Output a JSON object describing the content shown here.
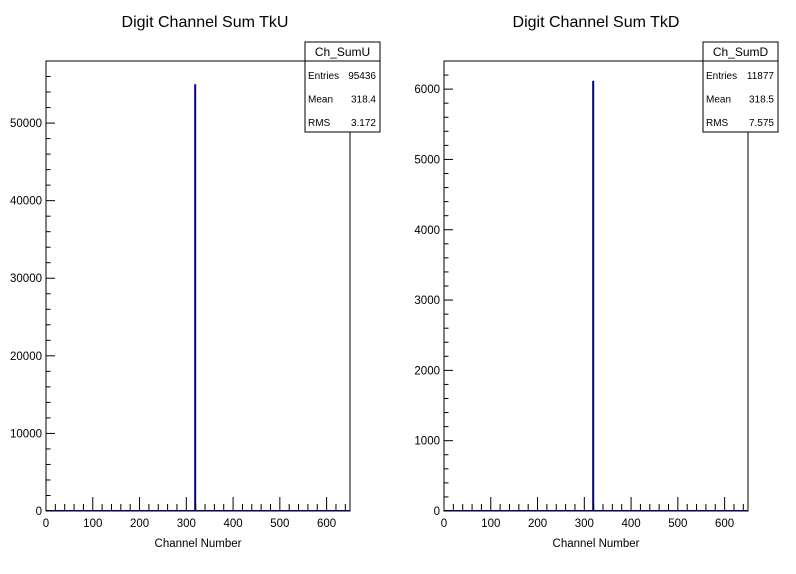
{
  "chart_data": [
    {
      "type": "bar",
      "title": "Digit Channel Sum TkU",
      "xlabel": "Channel Number",
      "ylabel": "",
      "xlim": [
        0,
        650
      ],
      "ylim": [
        0,
        58000
      ],
      "x_ticks": [
        "0",
        "100",
        "200",
        "300",
        "400",
        "500",
        "600"
      ],
      "y_ticks": [
        "0",
        "10000",
        "20000",
        "30000",
        "40000",
        "50000"
      ],
      "grid": false,
      "line_color": "#000080",
      "bins": [
        {
          "x": 319,
          "value": 55000
        }
      ],
      "stats": {
        "name": "Ch_SumU",
        "rows": [
          {
            "label": "Entries",
            "value": "95436"
          },
          {
            "label": "Mean",
            "value": "318.4"
          },
          {
            "label": "RMS",
            "value": "3.172"
          }
        ]
      }
    },
    {
      "type": "bar",
      "title": "Digit Channel Sum TkD",
      "xlabel": "Channel Number",
      "ylabel": "",
      "xlim": [
        0,
        650
      ],
      "ylim": [
        0,
        6400
      ],
      "x_ticks": [
        "0",
        "100",
        "200",
        "300",
        "400",
        "500",
        "600"
      ],
      "y_ticks": [
        "0",
        "1000",
        "2000",
        "3000",
        "4000",
        "5000",
        "6000"
      ],
      "grid": false,
      "line_color": "#000080",
      "bins": [
        {
          "x": 319,
          "value": 6120
        }
      ],
      "stats": {
        "name": "Ch_SumD",
        "rows": [
          {
            "label": "Entries",
            "value": "11877"
          },
          {
            "label": "Mean",
            "value": "318.5"
          },
          {
            "label": "RMS",
            "value": "7.575"
          }
        ]
      }
    }
  ]
}
